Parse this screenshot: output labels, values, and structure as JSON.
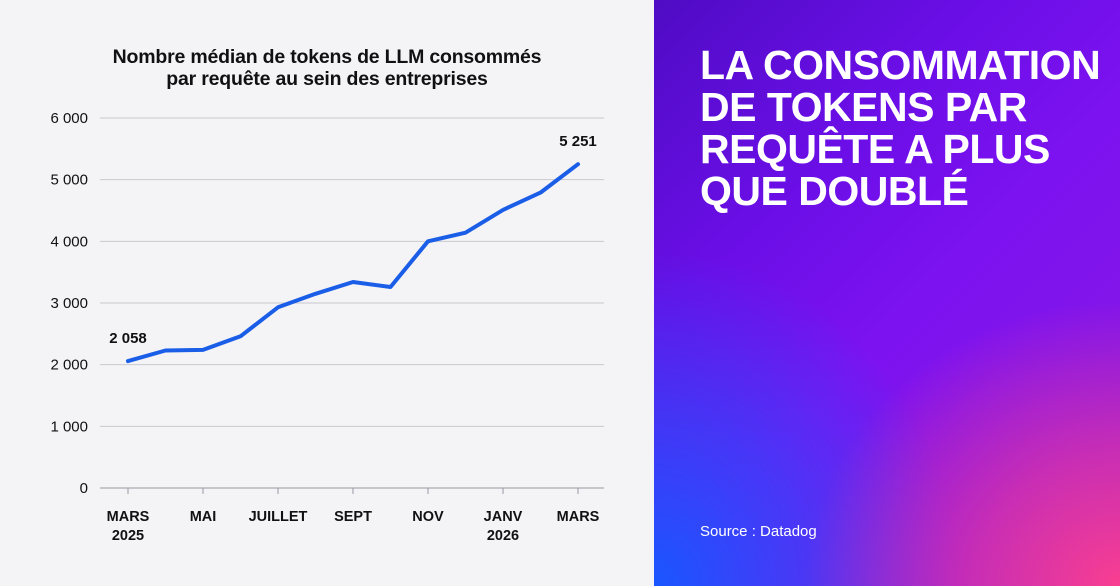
{
  "headline": {
    "lines": [
      "LA CONSOMMATION",
      "DE TOKENS PAR",
      "REQUÊTE A PLUS",
      "QUE DOUBLÉ"
    ]
  },
  "source": "Source : Datadog",
  "colors": {
    "line": "#1a5ee8",
    "chart_background": "#f4f3f6",
    "gridline": "#c9c9cf",
    "headline_text": "#ffffff"
  },
  "chart_data": {
    "type": "line",
    "title_lines": [
      "Nombre médian de tokens de LLM consommés",
      "par requête au sein des entreprises"
    ],
    "xlabel": "",
    "ylabel": "",
    "ylim": [
      0,
      6000
    ],
    "y_ticks": [
      0,
      1000,
      2000,
      3000,
      4000,
      5000,
      6000
    ],
    "y_tick_labels": [
      "0",
      "1 000",
      "2 000",
      "3 000",
      "4 000",
      "5 000",
      "6 000"
    ],
    "x": [
      "2025-03",
      "2025-04",
      "2025-05",
      "2025-06",
      "2025-07",
      "2025-08",
      "2025-09",
      "2025-10",
      "2025-11",
      "2025-12",
      "2026-01",
      "2026-02",
      "2026-03"
    ],
    "x_tick_labels": [
      {
        "month": "2025-03",
        "lines": [
          "MARS",
          "2025"
        ]
      },
      {
        "month": "2025-05",
        "lines": [
          "MAI"
        ]
      },
      {
        "month": "2025-07",
        "lines": [
          "JUILLET"
        ]
      },
      {
        "month": "2025-09",
        "lines": [
          "SEPT"
        ]
      },
      {
        "month": "2025-11",
        "lines": [
          "NOV"
        ]
      },
      {
        "month": "2026-01",
        "lines": [
          "JANV",
          "2026"
        ]
      },
      {
        "month": "2026-03",
        "lines": [
          "MARS"
        ]
      }
    ],
    "series": [
      {
        "values": [
          2058,
          2230,
          2240,
          2460,
          2930,
          3150,
          3340,
          3260,
          4000,
          4140,
          4510,
          4790,
          5251
        ]
      }
    ],
    "annotations": [
      {
        "month": "2025-03",
        "value": 2058,
        "text": "2 058"
      },
      {
        "month": "2026-03",
        "value": 5251,
        "text": "5 251"
      }
    ],
    "grid": true,
    "legend": "none"
  }
}
